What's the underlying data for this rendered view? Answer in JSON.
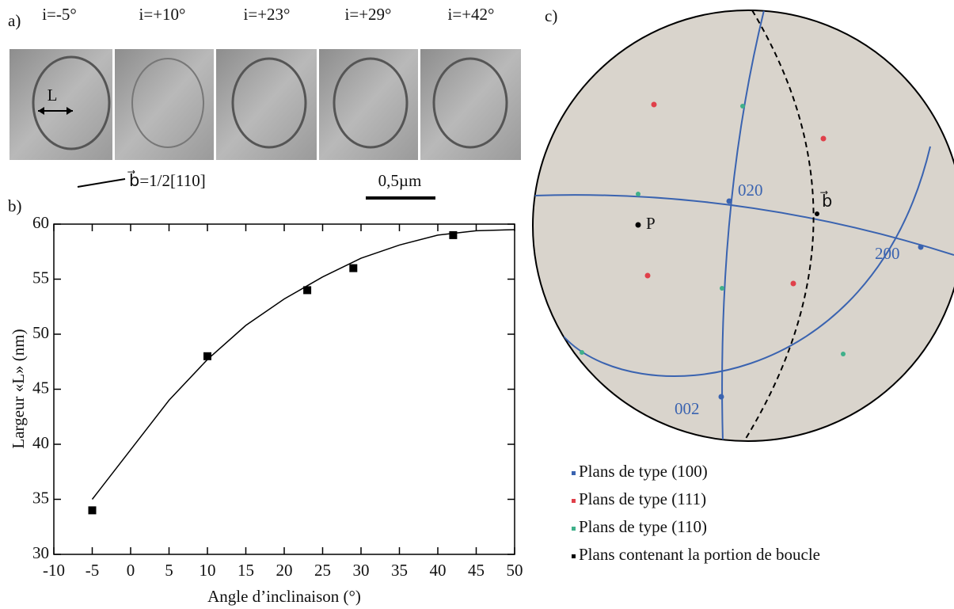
{
  "panel_a": {
    "label": "a)",
    "tilts": [
      "i=-5°",
      "i=+10°",
      "i=+23°",
      "i=+29°",
      "i=+42°"
    ],
    "width_label": "L",
    "burgers": "b⃗=1/2[110]",
    "scale_bar": "0,5µm"
  },
  "chart_data": {
    "type": "scatter",
    "label": "b)",
    "x_label": "Angle d’inclinaison (°)",
    "y_label": "Largeur «L» (nm)",
    "x": [
      -5,
      10,
      23,
      29,
      42
    ],
    "values": [
      34,
      48,
      54,
      56,
      59
    ],
    "color": "#000000",
    "fit": {
      "x": [
        -5,
        0,
        5,
        10,
        15,
        20,
        25,
        30,
        35,
        40,
        45,
        50
      ],
      "values": [
        35,
        39.5,
        44,
        47.7,
        50.8,
        53.2,
        55.2,
        56.9,
        58.1,
        59,
        59.4,
        59.5
      ]
    },
    "xlim": [
      -10,
      50
    ],
    "ylim": [
      30,
      60
    ],
    "xticks": [
      -10,
      -5,
      0,
      5,
      10,
      15,
      20,
      25,
      30,
      35,
      40,
      45,
      50
    ],
    "yticks": [
      30,
      35,
      40,
      45,
      50,
      55,
      60
    ]
  },
  "panel_c": {
    "label": "c)",
    "poles": [
      "020",
      "200",
      "002",
      "b⃗",
      "P"
    ],
    "legend": [
      {
        "label": "Plans de type (100)",
        "color": "#3a63b0"
      },
      {
        "label": "Plans de type (111)",
        "color": "#e0404a"
      },
      {
        "label": "Plans de type (110)",
        "color": "#3fb08a"
      },
      {
        "label": "Plans contenant la portion de boucle",
        "color": "#000000"
      }
    ]
  }
}
